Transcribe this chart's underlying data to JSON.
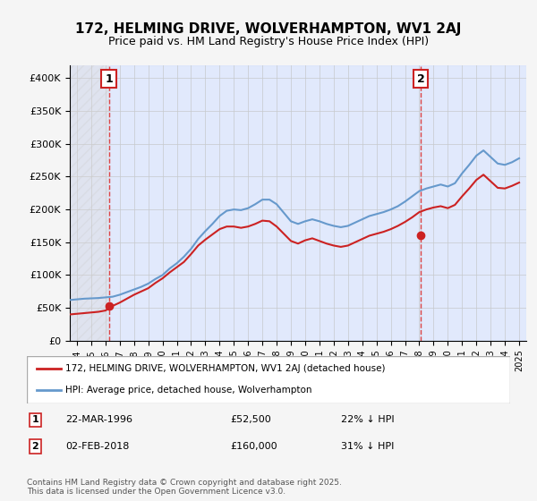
{
  "title": "172, HELMING DRIVE, WOLVERHAMPTON, WV1 2AJ",
  "subtitle": "Price paid vs. HM Land Registry's House Price Index (HPI)",
  "background_color": "#f0f4ff",
  "plot_bg_color": "#e8eeff",
  "grid_color": "#cccccc",
  "hpi_color": "#6699cc",
  "price_color": "#cc2222",
  "dashed_line_color": "#dd4444",
  "marker_color": "#cc2222",
  "legend_entry1": "172, HELMING DRIVE, WOLVERHAMPTON, WV1 2AJ (detached house)",
  "legend_entry2": "HPI: Average price, detached house, Wolverhampton",
  "point1_label": "1",
  "point1_date": "22-MAR-1996",
  "point1_price": "£52,500",
  "point1_hpi": "22% ↓ HPI",
  "point1_year": 1996.23,
  "point1_value": 52500,
  "point2_label": "2",
  "point2_date": "02-FEB-2018",
  "point2_price": "£160,000",
  "point2_hpi": "31% ↓ HPI",
  "point2_year": 2018.09,
  "point2_value": 160000,
  "xmin": 1993.5,
  "xmax": 2025.5,
  "ymin": 0,
  "ymax": 420000,
  "yticks": [
    0,
    50000,
    100000,
    150000,
    200000,
    250000,
    300000,
    350000,
    400000
  ],
  "ytick_labels": [
    "£0",
    "£50K",
    "£100K",
    "£150K",
    "£200K",
    "£250K",
    "£300K",
    "£350K",
    "£400K"
  ],
  "footer": "Contains HM Land Registry data © Crown copyright and database right 2025.\nThis data is licensed under the Open Government Licence v3.0.",
  "hpi_data_x": [
    1993.5,
    1994.0,
    1994.5,
    1995.0,
    1995.5,
    1996.0,
    1996.5,
    1997.0,
    1997.5,
    1998.0,
    1998.5,
    1999.0,
    1999.5,
    2000.0,
    2000.5,
    2001.0,
    2001.5,
    2002.0,
    2002.5,
    2003.0,
    2003.5,
    2004.0,
    2004.5,
    2005.0,
    2005.5,
    2006.0,
    2006.5,
    2007.0,
    2007.5,
    2008.0,
    2008.5,
    2009.0,
    2009.5,
    2010.0,
    2010.5,
    2011.0,
    2011.5,
    2012.0,
    2012.5,
    2013.0,
    2013.5,
    2014.0,
    2014.5,
    2015.0,
    2015.5,
    2016.0,
    2016.5,
    2017.0,
    2017.5,
    2018.0,
    2018.5,
    2019.0,
    2019.5,
    2020.0,
    2020.5,
    2021.0,
    2021.5,
    2022.0,
    2022.5,
    2023.0,
    2023.5,
    2024.0,
    2024.5,
    2025.0
  ],
  "hpi_data_y": [
    62000,
    63000,
    64000,
    64500,
    65000,
    66000,
    67000,
    70000,
    74000,
    78000,
    82000,
    87000,
    94000,
    100000,
    110000,
    118000,
    128000,
    140000,
    155000,
    167000,
    178000,
    190000,
    198000,
    200000,
    199000,
    202000,
    208000,
    215000,
    215000,
    208000,
    195000,
    182000,
    178000,
    182000,
    185000,
    182000,
    178000,
    175000,
    173000,
    175000,
    180000,
    185000,
    190000,
    193000,
    196000,
    200000,
    205000,
    212000,
    220000,
    228000,
    232000,
    235000,
    238000,
    235000,
    240000,
    255000,
    268000,
    282000,
    290000,
    280000,
    270000,
    268000,
    272000,
    278000
  ],
  "price_data_x": [
    1993.5,
    1994.0,
    1994.5,
    1995.0,
    1995.5,
    1996.0,
    1996.5,
    1997.0,
    1997.5,
    1998.0,
    1998.5,
    1999.0,
    1999.5,
    2000.0,
    2000.5,
    2001.0,
    2001.5,
    2002.0,
    2002.5,
    2003.0,
    2003.5,
    2004.0,
    2004.5,
    2005.0,
    2005.5,
    2006.0,
    2006.5,
    2007.0,
    2007.5,
    2008.0,
    2008.5,
    2009.0,
    2009.5,
    2010.0,
    2010.5,
    2011.0,
    2011.5,
    2012.0,
    2012.5,
    2013.0,
    2013.5,
    2014.0,
    2014.5,
    2015.0,
    2015.5,
    2016.0,
    2016.5,
    2017.0,
    2017.5,
    2018.0,
    2018.5,
    2019.0,
    2019.5,
    2020.0,
    2020.5,
    2021.0,
    2021.5,
    2022.0,
    2022.5,
    2023.0,
    2023.5,
    2024.0,
    2024.5,
    2025.0
  ],
  "price_data_y": [
    40000,
    41000,
    42000,
    43000,
    44000,
    46000,
    53000,
    58000,
    64000,
    70000,
    75000,
    80000,
    88000,
    95000,
    104000,
    112000,
    120000,
    132000,
    145000,
    154000,
    162000,
    170000,
    174000,
    174000,
    172000,
    174000,
    178000,
    183000,
    182000,
    174000,
    163000,
    152000,
    148000,
    153000,
    156000,
    152000,
    148000,
    145000,
    143000,
    145000,
    150000,
    155000,
    160000,
    163000,
    166000,
    170000,
    175000,
    181000,
    188000,
    196000,
    200000,
    203000,
    205000,
    202000,
    207000,
    220000,
    232000,
    245000,
    253000,
    243000,
    233000,
    232000,
    236000,
    241000
  ]
}
